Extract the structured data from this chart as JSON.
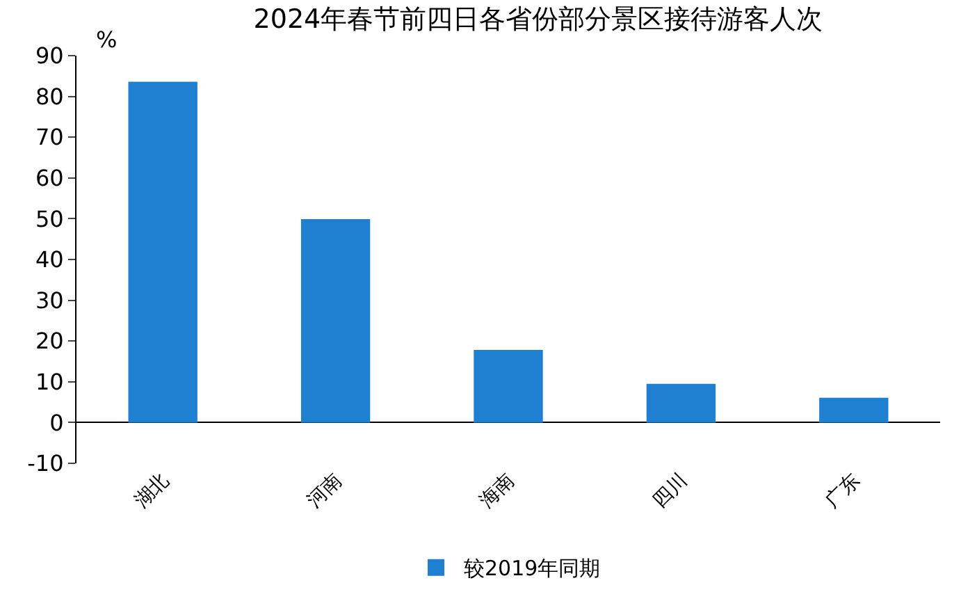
{
  "chart_data": {
    "type": "bar",
    "title": "2024年春节前四日各省份部分景区接待游客人次",
    "ylabel": "%",
    "categories": [
      "湖北",
      "河南",
      "海南",
      "四川",
      "广东"
    ],
    "series": [
      {
        "name": "较2019年同期",
        "color": "#1f7fd0",
        "values": [
          83.6,
          49.9,
          17.8,
          9.5,
          6.1
        ]
      }
    ],
    "ylim": [
      -10,
      90
    ],
    "yticks": [
      -10,
      0,
      10,
      20,
      30,
      40,
      50,
      60,
      70,
      80,
      90
    ],
    "legend": "bottom"
  }
}
